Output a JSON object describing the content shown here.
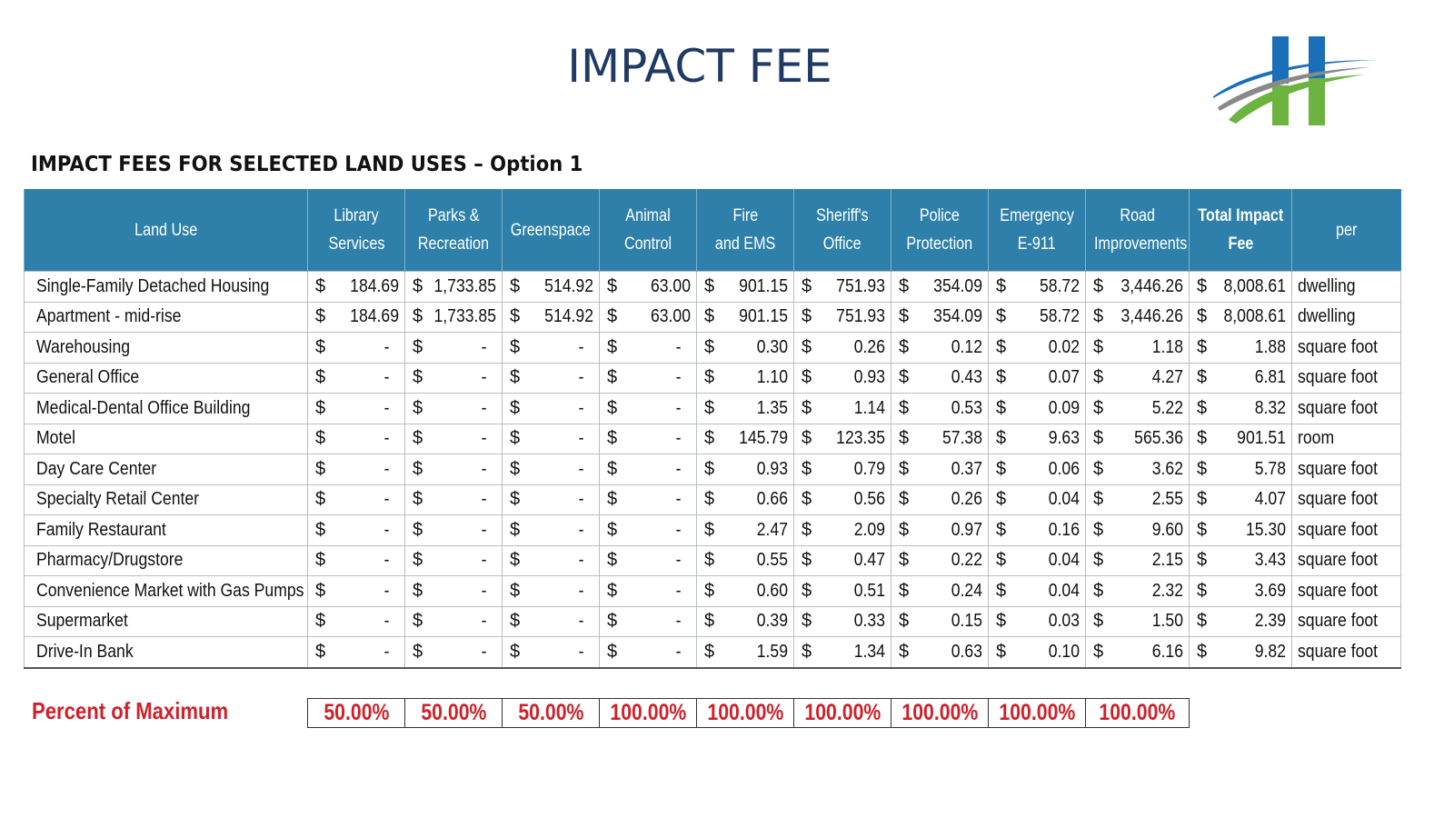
{
  "slide": {
    "title": "IMPACT FEE",
    "subtitle": "IMPACT FEES FOR SELECTED LAND USES – Option 1",
    "logo_letter": "H",
    "colors": {
      "header_bg": "#2e80aa",
      "title": "#1f3b63",
      "percent_red": "#d0202a",
      "logo_blue": "#1a6fb8",
      "logo_green": "#6cb33f",
      "logo_gray": "#8a8a8a"
    }
  },
  "table": {
    "headers": [
      [
        "Land Use"
      ],
      [
        "Library",
        "Services"
      ],
      [
        "Parks &",
        "Recreation"
      ],
      [
        "Greenspace"
      ],
      [
        "Animal Control"
      ],
      [
        "Fire",
        "and EMS"
      ],
      [
        "Sheriff's",
        "Office"
      ],
      [
        "Police",
        "Protection"
      ],
      [
        "Emergency",
        "E-911"
      ],
      [
        "Road",
        "Improvements"
      ],
      [
        "Total Impact",
        "Fee"
      ],
      [
        "per"
      ]
    ],
    "currency_symbol": "$",
    "rows": [
      {
        "land_use": "Single-Family Detached Housing",
        "values": [
          "184.69",
          "1,733.85",
          "514.92",
          "63.00",
          "901.15",
          "751.93",
          "354.09",
          "58.72",
          "3,446.26",
          "8,008.61"
        ],
        "per": "dwelling"
      },
      {
        "land_use": "Apartment - mid-rise",
        "values": [
          "184.69",
          "1,733.85",
          "514.92",
          "63.00",
          "901.15",
          "751.93",
          "354.09",
          "58.72",
          "3,446.26",
          "8,008.61"
        ],
        "per": "dwelling"
      },
      {
        "land_use": "Warehousing",
        "values": [
          "-",
          "-",
          "-",
          "-",
          "0.30",
          "0.26",
          "0.12",
          "0.02",
          "1.18",
          "1.88"
        ],
        "per": "square foot"
      },
      {
        "land_use": "General Office",
        "values": [
          "-",
          "-",
          "-",
          "-",
          "1.10",
          "0.93",
          "0.43",
          "0.07",
          "4.27",
          "6.81"
        ],
        "per": "square foot"
      },
      {
        "land_use": "Medical-Dental Office Building",
        "values": [
          "-",
          "-",
          "-",
          "-",
          "1.35",
          "1.14",
          "0.53",
          "0.09",
          "5.22",
          "8.32"
        ],
        "per": "square foot"
      },
      {
        "land_use": "Motel",
        "values": [
          "-",
          "-",
          "-",
          "-",
          "145.79",
          "123.35",
          "57.38",
          "9.63",
          "565.36",
          "901.51"
        ],
        "per": "room"
      },
      {
        "land_use": "Day Care Center",
        "values": [
          "-",
          "-",
          "-",
          "-",
          "0.93",
          "0.79",
          "0.37",
          "0.06",
          "3.62",
          "5.78"
        ],
        "per": "square foot"
      },
      {
        "land_use": "Specialty Retail Center",
        "values": [
          "-",
          "-",
          "-",
          "-",
          "0.66",
          "0.56",
          "0.26",
          "0.04",
          "2.55",
          "4.07"
        ],
        "per": "square foot"
      },
      {
        "land_use": "Family Restaurant",
        "values": [
          "-",
          "-",
          "-",
          "-",
          "2.47",
          "2.09",
          "0.97",
          "0.16",
          "9.60",
          "15.30"
        ],
        "per": "square foot"
      },
      {
        "land_use": "Pharmacy/Drugstore",
        "values": [
          "-",
          "-",
          "-",
          "-",
          "0.55",
          "0.47",
          "0.22",
          "0.04",
          "2.15",
          "3.43"
        ],
        "per": "square foot"
      },
      {
        "land_use": "Convenience Market with Gas Pumps",
        "values": [
          "-",
          "-",
          "-",
          "-",
          "0.60",
          "0.51",
          "0.24",
          "0.04",
          "2.32",
          "3.69"
        ],
        "per": "square foot"
      },
      {
        "land_use": "Supermarket",
        "values": [
          "-",
          "-",
          "-",
          "-",
          "0.39",
          "0.33",
          "0.15",
          "0.03",
          "1.50",
          "2.39"
        ],
        "per": "square foot"
      },
      {
        "land_use": "Drive-In Bank",
        "values": [
          "-",
          "-",
          "-",
          "-",
          "1.59",
          "1.34",
          "0.63",
          "0.10",
          "6.16",
          "9.82"
        ],
        "per": "square foot"
      }
    ]
  },
  "percent_of_maximum": {
    "label": "Percent of Maximum",
    "values": [
      "50.00%",
      "50.00%",
      "50.00%",
      "100.00%",
      "100.00%",
      "100.00%",
      "100.00%",
      "100.00%",
      "100.00%"
    ]
  }
}
